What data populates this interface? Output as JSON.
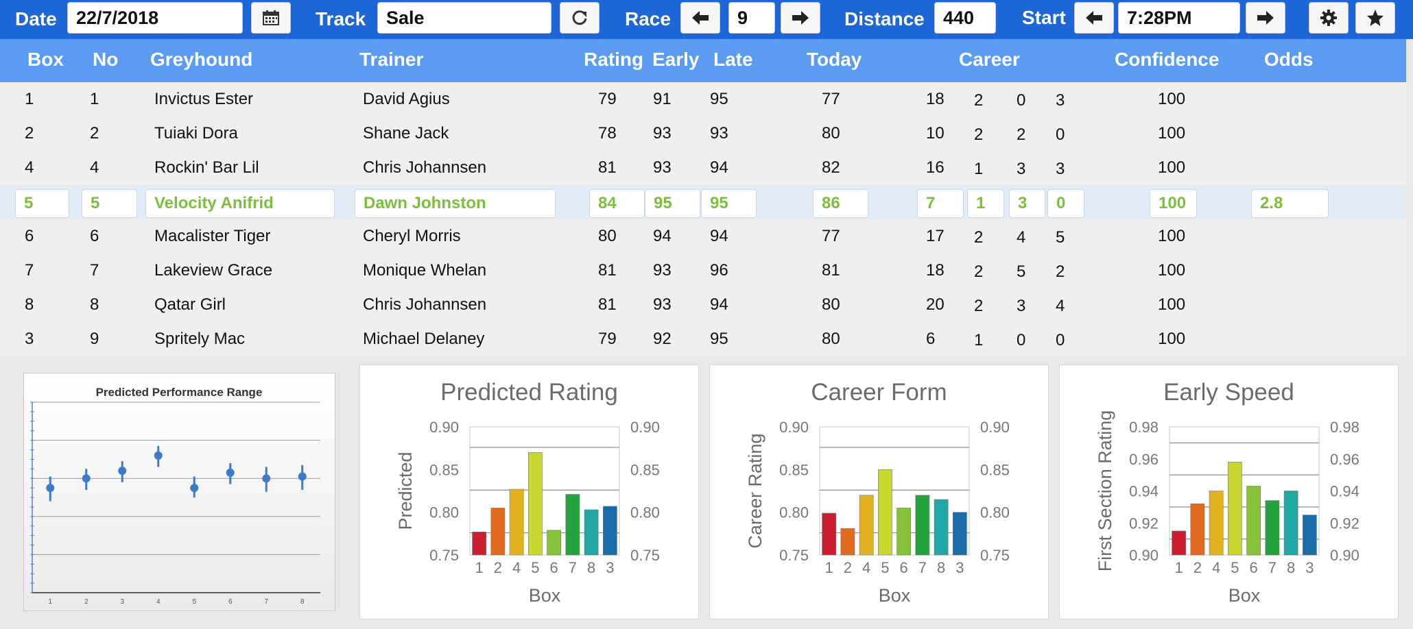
{
  "toolbar": {
    "date_label": "Date",
    "date_value": "22/7/2018",
    "track_label": "Track",
    "track_value": "Sale",
    "race_label": "Race",
    "race_value": "9",
    "distance_label": "Distance",
    "distance_value": "440",
    "start_label": "Start",
    "start_value": "7:28PM",
    "icons": [
      "calendar-icon",
      "refresh-icon",
      "arrow-left-icon",
      "arrow-right-icon",
      "gear-icon",
      "star-icon"
    ]
  },
  "table": {
    "headers": {
      "box": "Box",
      "no": "No",
      "greyhound": "Greyhound",
      "trainer": "Trainer",
      "rating": "Rating",
      "early": "Early",
      "late": "Late",
      "today": "Today",
      "career": "Career",
      "confidence": "Confidence",
      "odds": "Odds"
    },
    "rows": [
      {
        "box": "1",
        "no": "1",
        "greyhound": "Invictus Ester",
        "trainer": "David Agius",
        "rating": "79",
        "early": "91",
        "late": "95",
        "today": "77",
        "c1": "18",
        "c2": "2",
        "c3": "0",
        "c4": "3",
        "confidence": "100",
        "odds": ""
      },
      {
        "box": "2",
        "no": "2",
        "greyhound": "Tuiaki Dora",
        "trainer": "Shane Jack",
        "rating": "78",
        "early": "93",
        "late": "93",
        "today": "80",
        "c1": "10",
        "c2": "2",
        "c3": "2",
        "c4": "0",
        "confidence": "100",
        "odds": ""
      },
      {
        "box": "4",
        "no": "4",
        "greyhound": "Rockin' Bar Lil",
        "trainer": "Chris Johannsen",
        "rating": "81",
        "early": "93",
        "late": "94",
        "today": "82",
        "c1": "16",
        "c2": "1",
        "c3": "3",
        "c4": "3",
        "confidence": "100",
        "odds": ""
      },
      {
        "box": "5",
        "no": "5",
        "greyhound": "Velocity Anifrid",
        "trainer": "Dawn Johnston",
        "rating": "84",
        "early": "95",
        "late": "95",
        "today": "86",
        "c1": "7",
        "c2": "1",
        "c3": "3",
        "c4": "0",
        "confidence": "100",
        "odds": "2.8"
      },
      {
        "box": "6",
        "no": "6",
        "greyhound": "Macalister Tiger",
        "trainer": "Cheryl Morris",
        "rating": "80",
        "early": "94",
        "late": "94",
        "today": "77",
        "c1": "17",
        "c2": "2",
        "c3": "4",
        "c4": "5",
        "confidence": "100",
        "odds": ""
      },
      {
        "box": "7",
        "no": "7",
        "greyhound": "Lakeview Grace",
        "trainer": "Monique Whelan",
        "rating": "81",
        "early": "93",
        "late": "96",
        "today": "81",
        "c1": "18",
        "c2": "2",
        "c3": "5",
        "c4": "2",
        "confidence": "100",
        "odds": ""
      },
      {
        "box": "8",
        "no": "8",
        "greyhound": "Qatar Girl",
        "trainer": "Chris Johannsen",
        "rating": "81",
        "early": "93",
        "late": "94",
        "today": "80",
        "c1": "20",
        "c2": "2",
        "c3": "3",
        "c4": "4",
        "confidence": "100",
        "odds": ""
      },
      {
        "box": "3",
        "no": "9",
        "greyhound": "Spritely Mac",
        "trainer": "Michael Delaney",
        "rating": "79",
        "early": "92",
        "late": "95",
        "today": "80",
        "c1": "6",
        "c2": "1",
        "c3": "0",
        "c4": "0",
        "confidence": "100",
        "odds": ""
      }
    ],
    "selected_row": 3,
    "highlight_color": "#7bbf3b"
  },
  "chart_data": [
    {
      "type": "scatter",
      "title": "Predicted Performance Range",
      "x": [
        "1",
        "2",
        "3",
        "4",
        "5",
        "6",
        "7",
        "8"
      ],
      "values": [
        0.55,
        0.6,
        0.64,
        0.72,
        0.55,
        0.63,
        0.6,
        0.61
      ],
      "low": [
        0.48,
        0.54,
        0.58,
        0.66,
        0.5,
        0.57,
        0.53,
        0.54
      ],
      "high": [
        0.61,
        0.65,
        0.69,
        0.77,
        0.61,
        0.68,
        0.66,
        0.67
      ],
      "ylim": [
        0,
        1.0
      ]
    },
    {
      "type": "bar",
      "title": "Predicted Rating",
      "xlabel": "Box",
      "ylabel": "Predicted",
      "categories": [
        "1",
        "2",
        "4",
        "5",
        "6",
        "7",
        "8",
        "3"
      ],
      "values": [
        0.777,
        0.805,
        0.827,
        0.87,
        0.779,
        0.821,
        0.803,
        0.807
      ],
      "ylim": [
        0.75,
        0.9
      ],
      "yticks": [
        "0.90",
        "0.85",
        "0.80",
        "0.75"
      ],
      "grid_lines": [
        0.876,
        0.826,
        0.776
      ],
      "colors": [
        "#cc1e2e",
        "#e06a1e",
        "#e3b221",
        "#c8d62e",
        "#86c23a",
        "#22a33c",
        "#1fa8a4",
        "#1b6ba8"
      ]
    },
    {
      "type": "bar",
      "title": "Career Form",
      "xlabel": "Box",
      "ylabel": "Career Rating",
      "categories": [
        "1",
        "2",
        "4",
        "5",
        "6",
        "7",
        "8",
        "3"
      ],
      "values": [
        0.799,
        0.781,
        0.82,
        0.85,
        0.805,
        0.82,
        0.815,
        0.8
      ],
      "ylim": [
        0.75,
        0.9
      ],
      "yticks": [
        "0.90",
        "0.85",
        "0.80",
        "0.75"
      ],
      "grid_lines": [
        0.876,
        0.826,
        0.776
      ],
      "colors": [
        "#cc1e2e",
        "#e06a1e",
        "#e3b221",
        "#c8d62e",
        "#86c23a",
        "#22a33c",
        "#1fa8a4",
        "#1b6ba8"
      ]
    },
    {
      "type": "bar",
      "title": "Early Speed",
      "xlabel": "Box",
      "ylabel": "First Section Rating",
      "categories": [
        "1",
        "2",
        "4",
        "5",
        "6",
        "7",
        "8",
        "3"
      ],
      "values": [
        0.915,
        0.932,
        0.94,
        0.958,
        0.943,
        0.934,
        0.94,
        0.925
      ],
      "ylim": [
        0.9,
        0.98
      ],
      "yticks": [
        "0.98",
        "0.96",
        "0.94",
        "0.92",
        "0.90"
      ],
      "grid_lines": [
        0.97,
        0.95,
        0.93,
        0.91
      ],
      "colors": [
        "#cc1e2e",
        "#e06a1e",
        "#e3b221",
        "#c8d62e",
        "#86c23a",
        "#22a33c",
        "#1fa8a4",
        "#1b6ba8"
      ]
    }
  ]
}
